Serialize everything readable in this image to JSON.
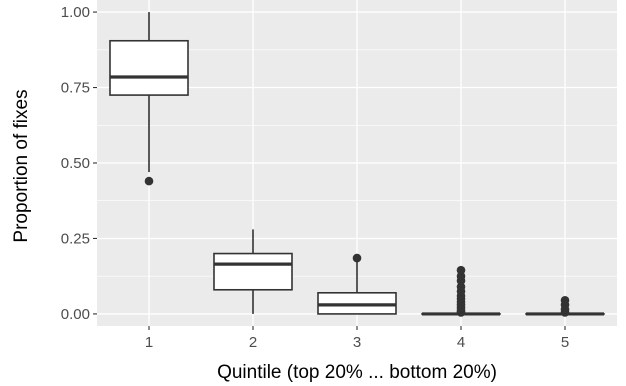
{
  "chart_data": {
    "type": "boxplot",
    "xlabel": "Quintile (top 20% ... bottom 20%)",
    "ylabel": "Proportion of fixes",
    "ylim": [
      -0.04,
      1.04
    ],
    "yticks": [
      0.0,
      0.25,
      0.5,
      0.75,
      1.0
    ],
    "ytick_labels": [
      "0.00",
      "0.25",
      "0.50",
      "0.75",
      "1.00"
    ],
    "categories": [
      "1",
      "2",
      "3",
      "4",
      "5"
    ],
    "boxes": [
      {
        "category": "1",
        "min": 0.47,
        "q1": 0.725,
        "median": 0.785,
        "q3": 0.905,
        "max": 1.0,
        "outliers": [
          0.44
        ]
      },
      {
        "category": "2",
        "min": 0.0,
        "q1": 0.08,
        "median": 0.165,
        "q3": 0.2,
        "max": 0.28,
        "outliers": []
      },
      {
        "category": "3",
        "min": 0.0,
        "q1": 0.0,
        "median": 0.03,
        "q3": 0.07,
        "max": 0.175,
        "outliers": [
          0.185
        ]
      },
      {
        "category": "4",
        "min": 0.0,
        "q1": 0.0,
        "median": 0.0,
        "q3": 0.0,
        "max": 0.0,
        "outliers": [
          0.005,
          0.01,
          0.02,
          0.03,
          0.04,
          0.05,
          0.06,
          0.075,
          0.09,
          0.11,
          0.125,
          0.145
        ]
      },
      {
        "category": "5",
        "min": 0.0,
        "q1": 0.0,
        "median": 0.0,
        "q3": 0.0,
        "max": 0.0,
        "outliers": [
          0.005,
          0.015,
          0.03,
          0.045
        ]
      }
    ],
    "grid": true,
    "colors": {
      "panel": "#ebebeb",
      "grid": "#ffffff",
      "box_fill": "#ffffff",
      "box_line": "#333333"
    }
  }
}
